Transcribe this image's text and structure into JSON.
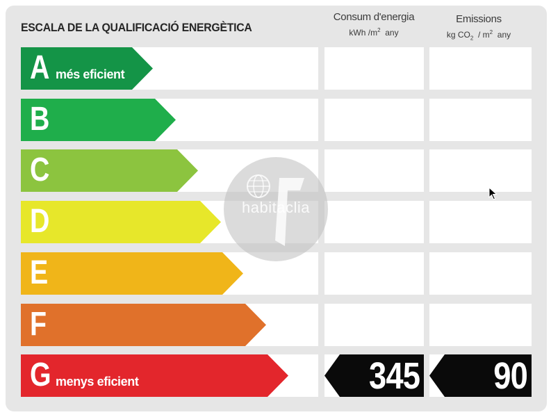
{
  "title": "ESCALA DE LA QUALIFICACIÓ ENERGÈTICA",
  "columns": {
    "consum": {
      "label": "Consum d'energia",
      "unit_prefix": "kWh /m",
      "unit_sup": "2",
      "unit_suffix": "any"
    },
    "emissions": {
      "label": "Emissions",
      "unit_prefix": "kg CO",
      "unit_sub": "2",
      "unit_mid": "/ m",
      "unit_sup": "2",
      "unit_suffix": "any"
    }
  },
  "ratings": [
    {
      "letter": "A",
      "caption": "més eficient",
      "color": "#149447"
    },
    {
      "letter": "B",
      "caption": "",
      "color": "#1fae4b"
    },
    {
      "letter": "C",
      "caption": "",
      "color": "#8cc43f"
    },
    {
      "letter": "D",
      "caption": "",
      "color": "#e7e72a"
    },
    {
      "letter": "E",
      "caption": "",
      "color": "#f0b519"
    },
    {
      "letter": "F",
      "caption": "",
      "color": "#e0712b"
    },
    {
      "letter": "G",
      "caption": "menys eficient",
      "color": "#e3262c"
    }
  ],
  "current_rating": "G",
  "values": {
    "consum": "345",
    "emissions": "90"
  },
  "watermark": {
    "text": "habitaclia",
    "icon": "globe-icon"
  },
  "cursor": {
    "icon": "mouse-pointer-icon"
  }
}
